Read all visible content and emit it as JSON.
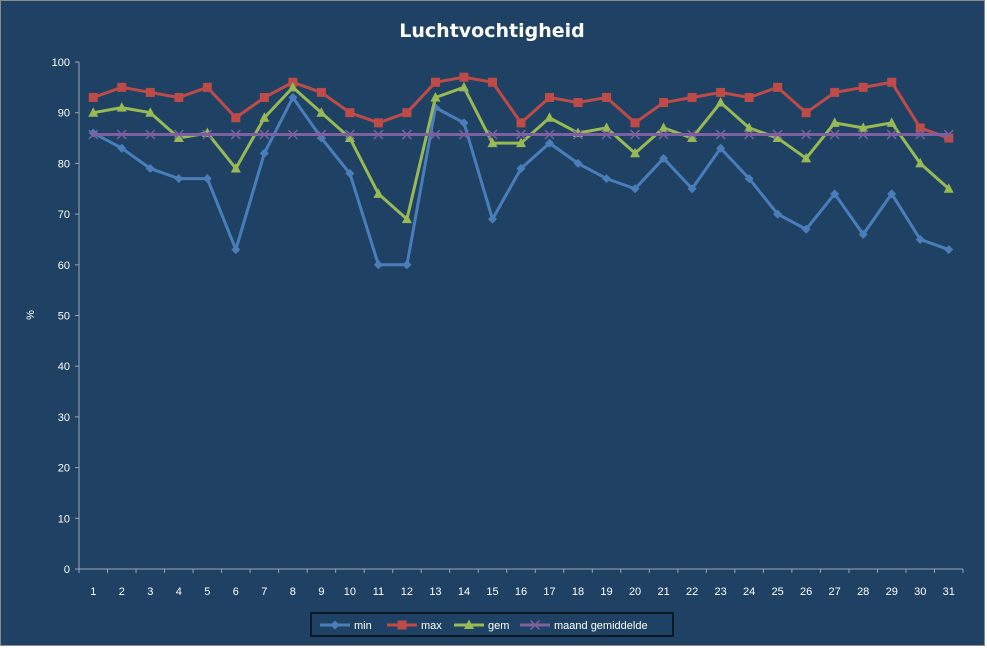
{
  "chart_data": {
    "type": "line",
    "title": "Luchtvochtigheid",
    "xlabel": "",
    "ylabel": "%",
    "ylim": [
      0,
      100
    ],
    "yticks": [
      0,
      10,
      20,
      30,
      40,
      50,
      60,
      70,
      80,
      90,
      100
    ],
    "x": [
      "1",
      "2",
      "3",
      "4",
      "5",
      "6",
      "7",
      "8",
      "9",
      "10",
      "11",
      "12",
      "13",
      "14",
      "15",
      "16",
      "17",
      "18",
      "19",
      "20",
      "21",
      "22",
      "23",
      "24",
      "25",
      "26",
      "27",
      "28",
      "29",
      "30",
      "31"
    ],
    "grid": false,
    "legend_position": "bottom",
    "series": [
      {
        "name": "min",
        "color": "#4a7ebb",
        "marker": "diamond",
        "values": [
          86,
          83,
          79,
          77,
          77,
          63,
          82,
          93,
          85,
          78,
          60,
          60,
          91,
          88,
          69,
          79,
          84,
          80,
          77,
          75,
          81,
          75,
          83,
          77,
          70,
          67,
          74,
          66,
          74,
          65,
          63
        ]
      },
      {
        "name": "max",
        "color": "#be4b48",
        "marker": "square",
        "values": [
          93,
          95,
          94,
          93,
          95,
          89,
          93,
          96,
          94,
          90,
          88,
          90,
          96,
          97,
          96,
          88,
          93,
          92,
          93,
          88,
          92,
          93,
          94,
          93,
          95,
          90,
          94,
          95,
          96,
          87,
          85
        ]
      },
      {
        "name": "gem",
        "color": "#98b954",
        "marker": "triangle",
        "values": [
          90,
          91,
          90,
          85,
          86,
          79,
          89,
          95,
          90,
          85,
          74,
          69,
          93,
          95,
          84,
          84,
          89,
          86,
          87,
          82,
          87,
          85,
          92,
          87,
          85,
          81,
          88,
          87,
          88,
          80,
          75
        ]
      },
      {
        "name": "maand gemiddelde",
        "color": "#7d60a0",
        "marker": "x",
        "values": [
          85.7,
          85.7,
          85.7,
          85.7,
          85.7,
          85.7,
          85.7,
          85.7,
          85.7,
          85.7,
          85.7,
          85.7,
          85.7,
          85.7,
          85.7,
          85.7,
          85.7,
          85.7,
          85.7,
          85.7,
          85.7,
          85.7,
          85.7,
          85.7,
          85.7,
          85.7,
          85.7,
          85.7,
          85.7,
          85.7,
          85.7
        ]
      }
    ]
  }
}
